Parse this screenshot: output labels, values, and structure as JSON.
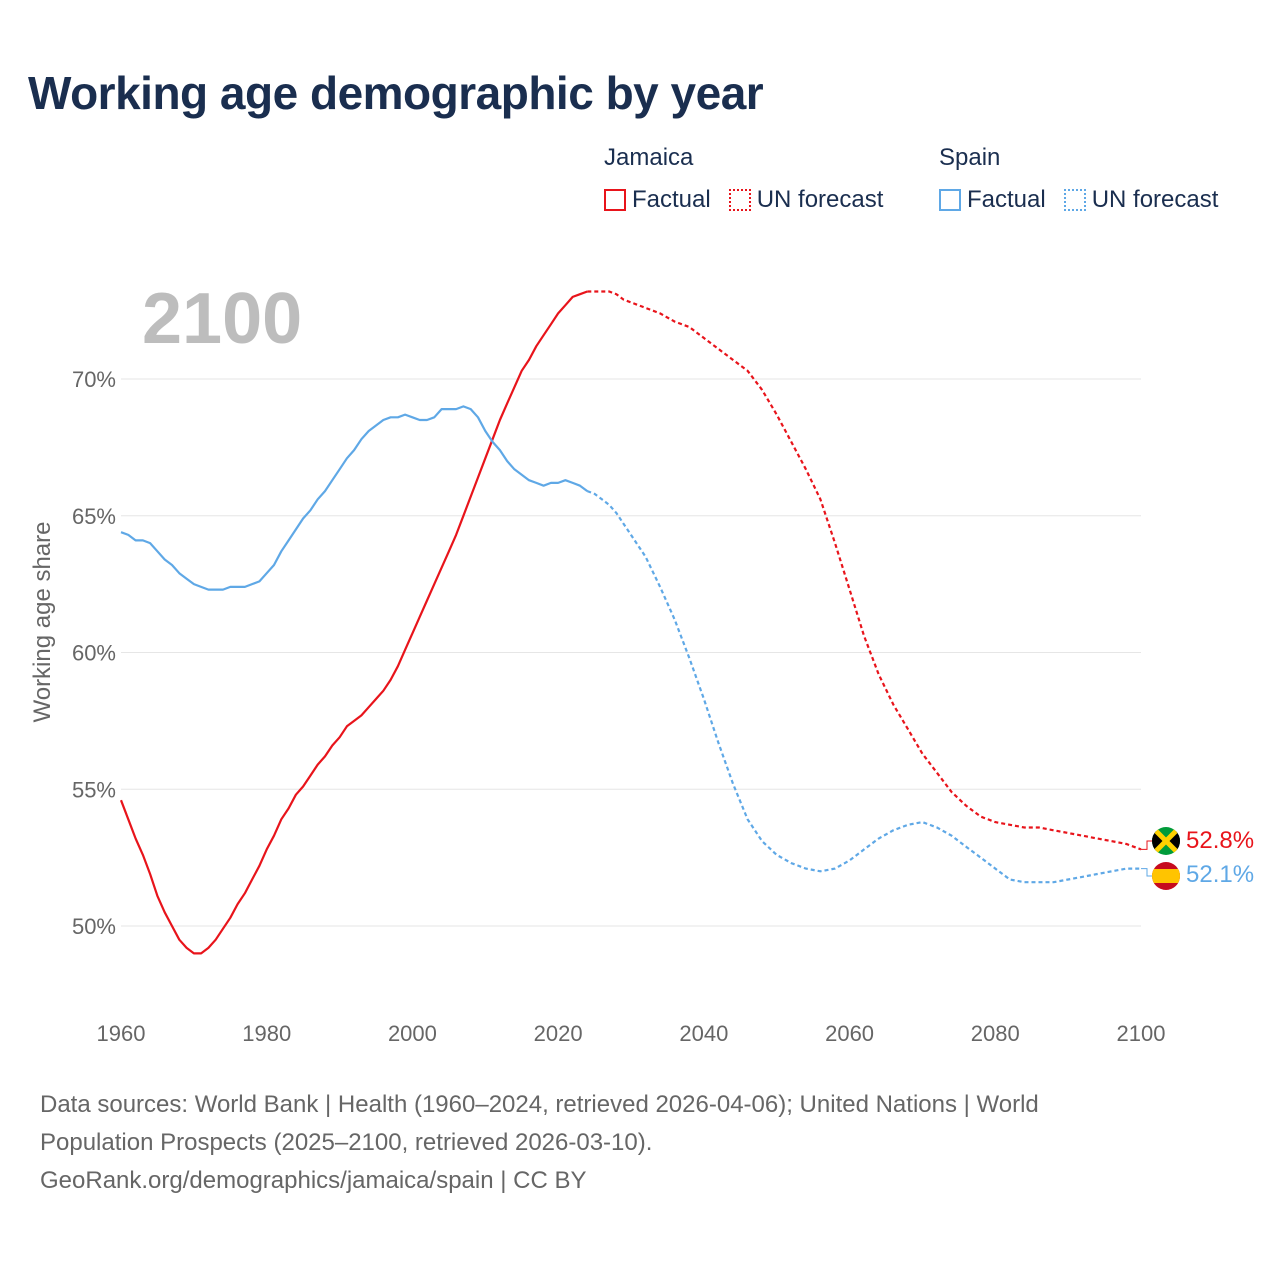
{
  "chart_data": {
    "type": "line",
    "title": "Working age demographic by year",
    "year_label": "2100",
    "ylabel": "Working age share",
    "xlabel": "",
    "xlim": [
      1960,
      2100
    ],
    "ylim": [
      47,
      74
    ],
    "x_ticks": [
      1960,
      1980,
      2000,
      2020,
      2040,
      2060,
      2080,
      2100
    ],
    "x_tick_labels": [
      "1960",
      "1980",
      "2000",
      "2020",
      "2040",
      "2060",
      "2080",
      "2100"
    ],
    "y_ticks": [
      50,
      55,
      60,
      65,
      70
    ],
    "y_tick_labels": [
      "50%",
      "55%",
      "60%",
      "65%",
      "70%"
    ],
    "legend": {
      "groups": [
        {
          "name": "Jamaica",
          "factual_label": "Factual",
          "forecast_label": "UN forecast",
          "color": "#e8141b"
        },
        {
          "name": "Spain",
          "factual_label": "Factual",
          "forecast_label": "UN forecast",
          "color": "#5fa8e6"
        }
      ]
    },
    "series": [
      {
        "name": "Jamaica",
        "color": "#e8141b",
        "end_label": "52.8%",
        "factual_end": 2024,
        "points": [
          [
            1960,
            54.6
          ],
          [
            1961,
            53.9
          ],
          [
            1962,
            53.2
          ],
          [
            1963,
            52.6
          ],
          [
            1964,
            51.9
          ],
          [
            1965,
            51.1
          ],
          [
            1966,
            50.5
          ],
          [
            1967,
            50.0
          ],
          [
            1968,
            49.5
          ],
          [
            1969,
            49.2
          ],
          [
            1970,
            49.0
          ],
          [
            1971,
            49.0
          ],
          [
            1972,
            49.2
          ],
          [
            1973,
            49.5
          ],
          [
            1974,
            49.9
          ],
          [
            1975,
            50.3
          ],
          [
            1976,
            50.8
          ],
          [
            1977,
            51.2
          ],
          [
            1978,
            51.7
          ],
          [
            1979,
            52.2
          ],
          [
            1980,
            52.8
          ],
          [
            1981,
            53.3
          ],
          [
            1982,
            53.9
          ],
          [
            1983,
            54.3
          ],
          [
            1984,
            54.8
          ],
          [
            1985,
            55.1
          ],
          [
            1986,
            55.5
          ],
          [
            1987,
            55.9
          ],
          [
            1988,
            56.2
          ],
          [
            1989,
            56.6
          ],
          [
            1990,
            56.9
          ],
          [
            1991,
            57.3
          ],
          [
            1992,
            57.5
          ],
          [
            1993,
            57.7
          ],
          [
            1994,
            58.0
          ],
          [
            1995,
            58.3
          ],
          [
            1996,
            58.6
          ],
          [
            1997,
            59.0
          ],
          [
            1998,
            59.5
          ],
          [
            1999,
            60.1
          ],
          [
            2000,
            60.7
          ],
          [
            2001,
            61.3
          ],
          [
            2002,
            61.9
          ],
          [
            2003,
            62.5
          ],
          [
            2004,
            63.1
          ],
          [
            2005,
            63.7
          ],
          [
            2006,
            64.3
          ],
          [
            2007,
            65.0
          ],
          [
            2008,
            65.7
          ],
          [
            2009,
            66.4
          ],
          [
            2010,
            67.1
          ],
          [
            2011,
            67.8
          ],
          [
            2012,
            68.5
          ],
          [
            2013,
            69.1
          ],
          [
            2014,
            69.7
          ],
          [
            2015,
            70.3
          ],
          [
            2016,
            70.7
          ],
          [
            2017,
            71.2
          ],
          [
            2018,
            71.6
          ],
          [
            2019,
            72.0
          ],
          [
            2020,
            72.4
          ],
          [
            2021,
            72.7
          ],
          [
            2022,
            73.0
          ],
          [
            2023,
            73.1
          ],
          [
            2024,
            73.2
          ],
          [
            2025,
            73.2
          ],
          [
            2026,
            73.2
          ],
          [
            2027,
            73.2
          ],
          [
            2028,
            73.1
          ],
          [
            2029,
            72.9
          ],
          [
            2030,
            72.8
          ],
          [
            2032,
            72.6
          ],
          [
            2034,
            72.4
          ],
          [
            2036,
            72.1
          ],
          [
            2038,
            71.9
          ],
          [
            2040,
            71.5
          ],
          [
            2042,
            71.1
          ],
          [
            2044,
            70.7
          ],
          [
            2046,
            70.3
          ],
          [
            2048,
            69.6
          ],
          [
            2050,
            68.7
          ],
          [
            2052,
            67.7
          ],
          [
            2054,
            66.7
          ],
          [
            2056,
            65.6
          ],
          [
            2058,
            64.0
          ],
          [
            2060,
            62.3
          ],
          [
            2062,
            60.6
          ],
          [
            2064,
            59.2
          ],
          [
            2066,
            58.1
          ],
          [
            2068,
            57.2
          ],
          [
            2070,
            56.3
          ],
          [
            2072,
            55.6
          ],
          [
            2074,
            54.9
          ],
          [
            2076,
            54.4
          ],
          [
            2078,
            54.0
          ],
          [
            2080,
            53.8
          ],
          [
            2082,
            53.7
          ],
          [
            2084,
            53.6
          ],
          [
            2086,
            53.6
          ],
          [
            2088,
            53.5
          ],
          [
            2090,
            53.4
          ],
          [
            2092,
            53.3
          ],
          [
            2094,
            53.2
          ],
          [
            2096,
            53.1
          ],
          [
            2098,
            53.0
          ],
          [
            2100,
            52.8
          ]
        ]
      },
      {
        "name": "Spain",
        "color": "#5fa8e6",
        "end_label": "52.1%",
        "factual_end": 2024,
        "points": [
          [
            1960,
            64.4
          ],
          [
            1961,
            64.3
          ],
          [
            1962,
            64.1
          ],
          [
            1963,
            64.1
          ],
          [
            1964,
            64.0
          ],
          [
            1965,
            63.7
          ],
          [
            1966,
            63.4
          ],
          [
            1967,
            63.2
          ],
          [
            1968,
            62.9
          ],
          [
            1969,
            62.7
          ],
          [
            1970,
            62.5
          ],
          [
            1971,
            62.4
          ],
          [
            1972,
            62.3
          ],
          [
            1973,
            62.3
          ],
          [
            1974,
            62.3
          ],
          [
            1975,
            62.4
          ],
          [
            1976,
            62.4
          ],
          [
            1977,
            62.4
          ],
          [
            1978,
            62.5
          ],
          [
            1979,
            62.6
          ],
          [
            1980,
            62.9
          ],
          [
            1981,
            63.2
          ],
          [
            1982,
            63.7
          ],
          [
            1983,
            64.1
          ],
          [
            1984,
            64.5
          ],
          [
            1985,
            64.9
          ],
          [
            1986,
            65.2
          ],
          [
            1987,
            65.6
          ],
          [
            1988,
            65.9
          ],
          [
            1989,
            66.3
          ],
          [
            1990,
            66.7
          ],
          [
            1991,
            67.1
          ],
          [
            1992,
            67.4
          ],
          [
            1993,
            67.8
          ],
          [
            1994,
            68.1
          ],
          [
            1995,
            68.3
          ],
          [
            1996,
            68.5
          ],
          [
            1997,
            68.6
          ],
          [
            1998,
            68.6
          ],
          [
            1999,
            68.7
          ],
          [
            2000,
            68.6
          ],
          [
            2001,
            68.5
          ],
          [
            2002,
            68.5
          ],
          [
            2003,
            68.6
          ],
          [
            2004,
            68.9
          ],
          [
            2005,
            68.9
          ],
          [
            2006,
            68.9
          ],
          [
            2007,
            69.0
          ],
          [
            2008,
            68.9
          ],
          [
            2009,
            68.6
          ],
          [
            2010,
            68.1
          ],
          [
            2011,
            67.7
          ],
          [
            2012,
            67.4
          ],
          [
            2013,
            67.0
          ],
          [
            2014,
            66.7
          ],
          [
            2015,
            66.5
          ],
          [
            2016,
            66.3
          ],
          [
            2017,
            66.2
          ],
          [
            2018,
            66.1
          ],
          [
            2019,
            66.2
          ],
          [
            2020,
            66.2
          ],
          [
            2021,
            66.3
          ],
          [
            2022,
            66.2
          ],
          [
            2023,
            66.1
          ],
          [
            2024,
            65.9
          ],
          [
            2025,
            65.8
          ],
          [
            2026,
            65.6
          ],
          [
            2027,
            65.4
          ],
          [
            2028,
            65.1
          ],
          [
            2029,
            64.7
          ],
          [
            2030,
            64.3
          ],
          [
            2032,
            63.5
          ],
          [
            2034,
            62.4
          ],
          [
            2036,
            61.2
          ],
          [
            2038,
            59.8
          ],
          [
            2040,
            58.3
          ],
          [
            2042,
            56.7
          ],
          [
            2044,
            55.2
          ],
          [
            2046,
            53.9
          ],
          [
            2048,
            53.1
          ],
          [
            2050,
            52.6
          ],
          [
            2052,
            52.3
          ],
          [
            2054,
            52.1
          ],
          [
            2056,
            52.0
          ],
          [
            2058,
            52.1
          ],
          [
            2060,
            52.4
          ],
          [
            2062,
            52.8
          ],
          [
            2064,
            53.2
          ],
          [
            2066,
            53.5
          ],
          [
            2068,
            53.7
          ],
          [
            2070,
            53.8
          ],
          [
            2072,
            53.6
          ],
          [
            2074,
            53.3
          ],
          [
            2076,
            52.9
          ],
          [
            2078,
            52.5
          ],
          [
            2080,
            52.1
          ],
          [
            2082,
            51.7
          ],
          [
            2084,
            51.6
          ],
          [
            2086,
            51.6
          ],
          [
            2088,
            51.6
          ],
          [
            2090,
            51.7
          ],
          [
            2092,
            51.8
          ],
          [
            2094,
            51.9
          ],
          [
            2096,
            52.0
          ],
          [
            2098,
            52.1
          ],
          [
            2100,
            52.1
          ]
        ]
      }
    ]
  },
  "footer": {
    "line1": "Data sources: World Bank | Health (1960–2024, retrieved 2026-04-06); United Nations | World",
    "line2": "Population Prospects (2025–2100, retrieved 2026-03-10).",
    "line3": "GeoRank.org/demographics/jamaica/spain | CC BY"
  },
  "flags": {
    "jamaica": {
      "green": "#009b3a",
      "gold": "#fed100",
      "black": "#000000"
    },
    "spain": {
      "red": "#c60b1e",
      "yellow": "#ffc400"
    }
  }
}
